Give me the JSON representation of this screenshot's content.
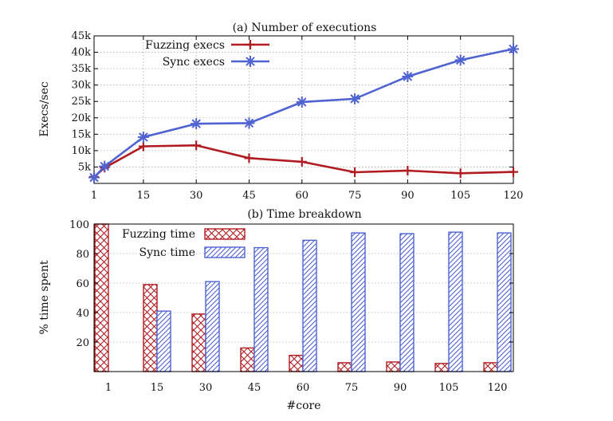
{
  "chart_data": [
    {
      "type": "line",
      "title": "(a) Number of executions",
      "xlabel": "",
      "ylabel": "Execs/sec",
      "x": [
        1,
        4,
        15,
        30,
        45,
        60,
        75,
        90,
        105,
        120
      ],
      "xticks": [
        "1",
        "15",
        "30",
        "45",
        "60",
        "75",
        "90",
        "105",
        "120"
      ],
      "yticks": [
        "5k",
        "10k",
        "15k",
        "20k",
        "25k",
        "30k",
        "35k",
        "40k",
        "45k"
      ],
      "xlim": [
        1,
        120
      ],
      "ylim": [
        0,
        45000
      ],
      "grid": true,
      "legend": "top-left",
      "series": [
        {
          "name": "Fuzzing execs",
          "color": "#b01c22",
          "marker": "plus",
          "values": [
            2000,
            4800,
            11300,
            11600,
            7700,
            6600,
            3400,
            3900,
            3100,
            3500
          ]
        },
        {
          "name": "Sync execs",
          "color": "#4f63d1",
          "marker": "star",
          "values": [
            1800,
            5200,
            14100,
            18200,
            18400,
            24800,
            25800,
            32600,
            37600,
            41000
          ]
        }
      ]
    },
    {
      "type": "bar",
      "title": "(b) Time breakdown",
      "xlabel": "#core",
      "ylabel": "% time spent",
      "categories": [
        "1",
        "15",
        "30",
        "45",
        "60",
        "75",
        "90",
        "105",
        "120"
      ],
      "yticks": [
        "20",
        "40",
        "60",
        "80",
        "100"
      ],
      "ylim": [
        0,
        100
      ],
      "grid": true,
      "legend": "top-left",
      "series": [
        {
          "name": "Fuzzing time",
          "color": "#b01c22",
          "pattern": "crosshatch",
          "values": [
            100,
            59,
            39,
            16,
            11,
            6,
            6.5,
            5.5,
            6
          ]
        },
        {
          "name": "Sync time",
          "color": "#4f63d1",
          "pattern": "diagonal",
          "values": [
            0,
            41,
            61,
            84,
            89,
            94,
            93.5,
            94.5,
            94
          ]
        }
      ]
    }
  ]
}
